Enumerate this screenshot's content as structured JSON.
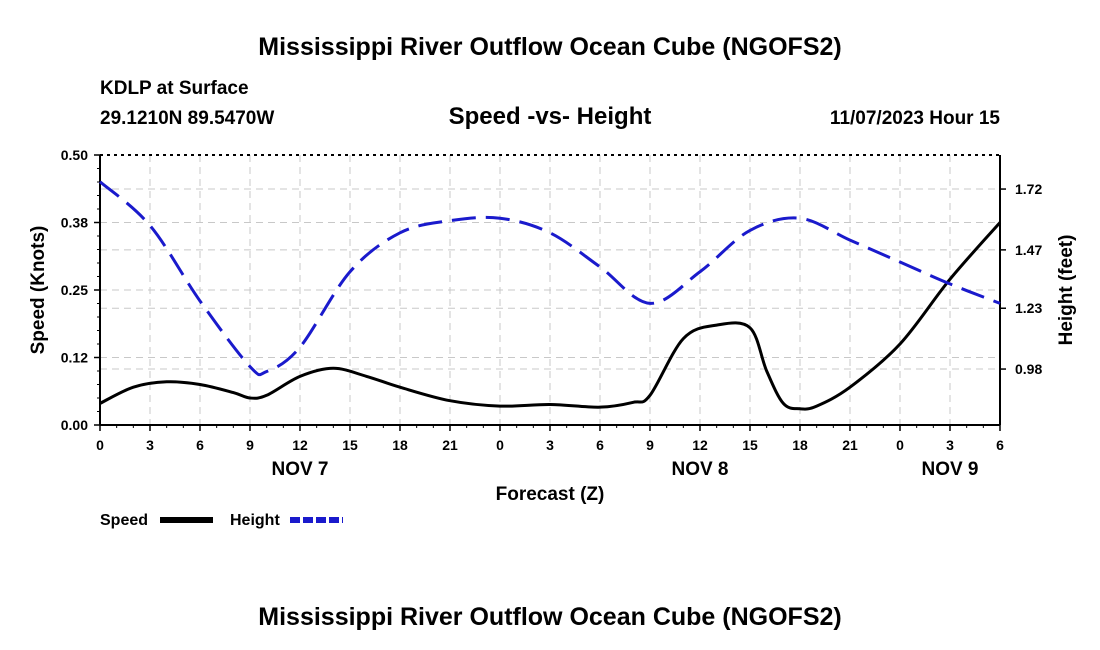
{
  "header": {
    "title": "Mississippi River Outflow Ocean Cube (NGOFS2)",
    "station": "KDLP at Surface",
    "coords": "29.1210N  89.5470W",
    "subtitle": "Speed -vs- Height",
    "datetime": "11/07/2023 Hour 15"
  },
  "footer": {
    "title": "Mississippi River Outflow Ocean Cube (NGOFS2)"
  },
  "colors": {
    "speed": "#000000",
    "height": "#1a1acc"
  },
  "chart_data": {
    "type": "line",
    "title": "Speed -vs- Height",
    "xlabel": "Forecast (Z)",
    "ylabel": "Speed (Knots)",
    "y2label": "Height (feet)",
    "xlim": [
      0,
      54
    ],
    "ylim": [
      0,
      0.5
    ],
    "y2lim": [
      0.75,
      1.86
    ],
    "x_ticks": [
      {
        "x": 0,
        "label": "0"
      },
      {
        "x": 3,
        "label": "3"
      },
      {
        "x": 6,
        "label": "6"
      },
      {
        "x": 9,
        "label": "9"
      },
      {
        "x": 12,
        "label": "12"
      },
      {
        "x": 15,
        "label": "15"
      },
      {
        "x": 18,
        "label": "18"
      },
      {
        "x": 21,
        "label": "21"
      },
      {
        "x": 24,
        "label": "0"
      },
      {
        "x": 27,
        "label": "3"
      },
      {
        "x": 30,
        "label": "6"
      },
      {
        "x": 33,
        "label": "9"
      },
      {
        "x": 36,
        "label": "12"
      },
      {
        "x": 39,
        "label": "15"
      },
      {
        "x": 42,
        "label": "18"
      },
      {
        "x": 45,
        "label": "21"
      },
      {
        "x": 48,
        "label": "0"
      },
      {
        "x": 51,
        "label": "3"
      },
      {
        "x": 54,
        "label": "6"
      }
    ],
    "day_labels": [
      {
        "x": 12,
        "label": "NOV 7"
      },
      {
        "x": 36,
        "label": "NOV 8"
      },
      {
        "x": 51,
        "label": "NOV 9"
      }
    ],
    "y_ticks": [
      {
        "v": 0.0,
        "label": "0.00"
      },
      {
        "v": 0.125,
        "label": "0.12"
      },
      {
        "v": 0.25,
        "label": "0.25"
      },
      {
        "v": 0.375,
        "label": "0.38"
      },
      {
        "v": 0.5,
        "label": "0.50"
      }
    ],
    "y2_ticks": [
      {
        "v": 0.98,
        "label": "0.98"
      },
      {
        "v": 1.23,
        "label": "1.23"
      },
      {
        "v": 1.47,
        "label": "1.47"
      },
      {
        "v": 1.72,
        "label": "1.72"
      }
    ],
    "series": [
      {
        "name": "Speed",
        "axis": "left",
        "style": "solid",
        "x": [
          0,
          2,
          4,
          6,
          8,
          9,
          10,
          12,
          14,
          16,
          18,
          21,
          24,
          27,
          30,
          32,
          33,
          35,
          37,
          39,
          40,
          41,
          42,
          43,
          45,
          48,
          51,
          54
        ],
        "values": [
          0.04,
          0.07,
          0.08,
          0.075,
          0.06,
          0.05,
          0.055,
          0.09,
          0.105,
          0.09,
          0.07,
          0.045,
          0.035,
          0.038,
          0.033,
          0.042,
          0.055,
          0.16,
          0.185,
          0.18,
          0.1,
          0.04,
          0.03,
          0.035,
          0.07,
          0.15,
          0.27,
          0.375
        ]
      },
      {
        "name": "Height",
        "axis": "right",
        "style": "dashed",
        "x": [
          0,
          3,
          6,
          9,
          10,
          12,
          15,
          18,
          21,
          24,
          27,
          30,
          33,
          36,
          39,
          42,
          45,
          48,
          51,
          54
        ],
        "values": [
          1.75,
          1.57,
          1.26,
          0.99,
          0.97,
          1.07,
          1.38,
          1.54,
          1.59,
          1.6,
          1.54,
          1.4,
          1.25,
          1.38,
          1.55,
          1.6,
          1.51,
          1.42,
          1.33,
          1.25
        ]
      }
    ],
    "legend": [
      {
        "name": "Speed",
        "label": "Speed"
      },
      {
        "name": "Height",
        "label": "Height"
      }
    ],
    "legend_position": "bottom-left"
  }
}
